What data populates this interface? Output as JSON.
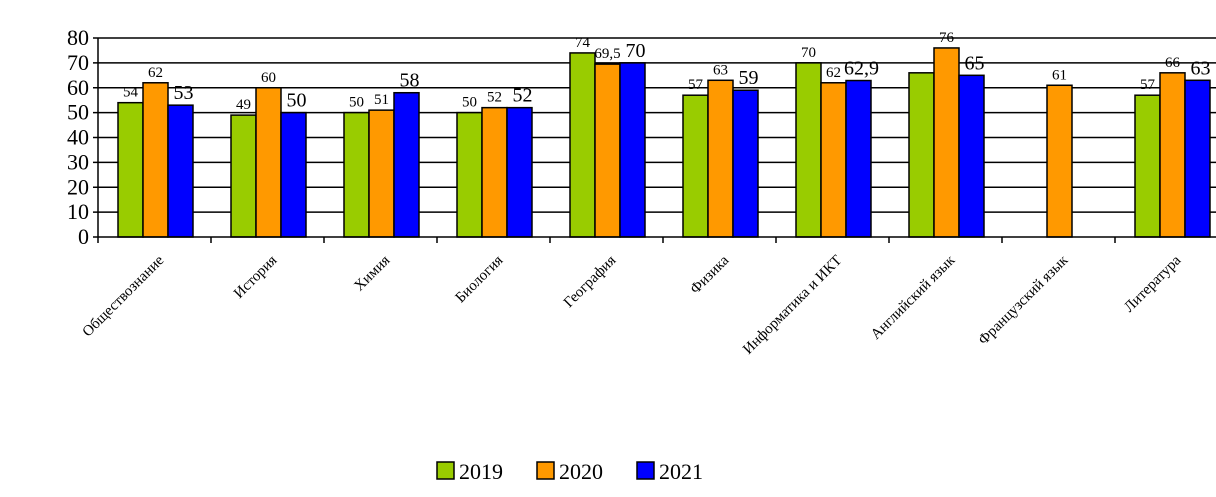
{
  "chart_data": {
    "type": "bar",
    "categories": [
      "Обществознание",
      "История",
      "Химия",
      "Биология",
      "География",
      "Физика",
      "Информатика и ИКТ",
      "Английский язык",
      "Французский язык",
      "Литература"
    ],
    "series": [
      {
        "name": "2019",
        "color": "#99cc00",
        "values": [
          54,
          49,
          50,
          50,
          74,
          57,
          70,
          66,
          null,
          57
        ],
        "labels": [
          "54",
          "49",
          "50",
          "50",
          "74",
          "57",
          "70",
          "",
          "",
          "57"
        ]
      },
      {
        "name": "2020",
        "color": "#ff9900",
        "values": [
          62,
          60,
          51,
          52,
          69.5,
          63,
          62,
          76,
          61,
          66
        ],
        "labels": [
          "62",
          "60",
          "51",
          "52",
          "69,5",
          "63",
          "62",
          "76",
          "61",
          "66"
        ]
      },
      {
        "name": "2021",
        "color": "#0000ff",
        "values": [
          53,
          50,
          58,
          52,
          70,
          59,
          62.9,
          65,
          null,
          63
        ],
        "labels": [
          "53",
          "50",
          "58",
          "52",
          "70",
          "59",
          "62,9",
          "65",
          "",
          "63"
        ]
      }
    ],
    "yticks": [
      0,
      10,
      20,
      30,
      40,
      50,
      60,
      70,
      80
    ],
    "ylim": [
      0,
      80
    ],
    "grid": true,
    "legend": "bottom-center"
  }
}
